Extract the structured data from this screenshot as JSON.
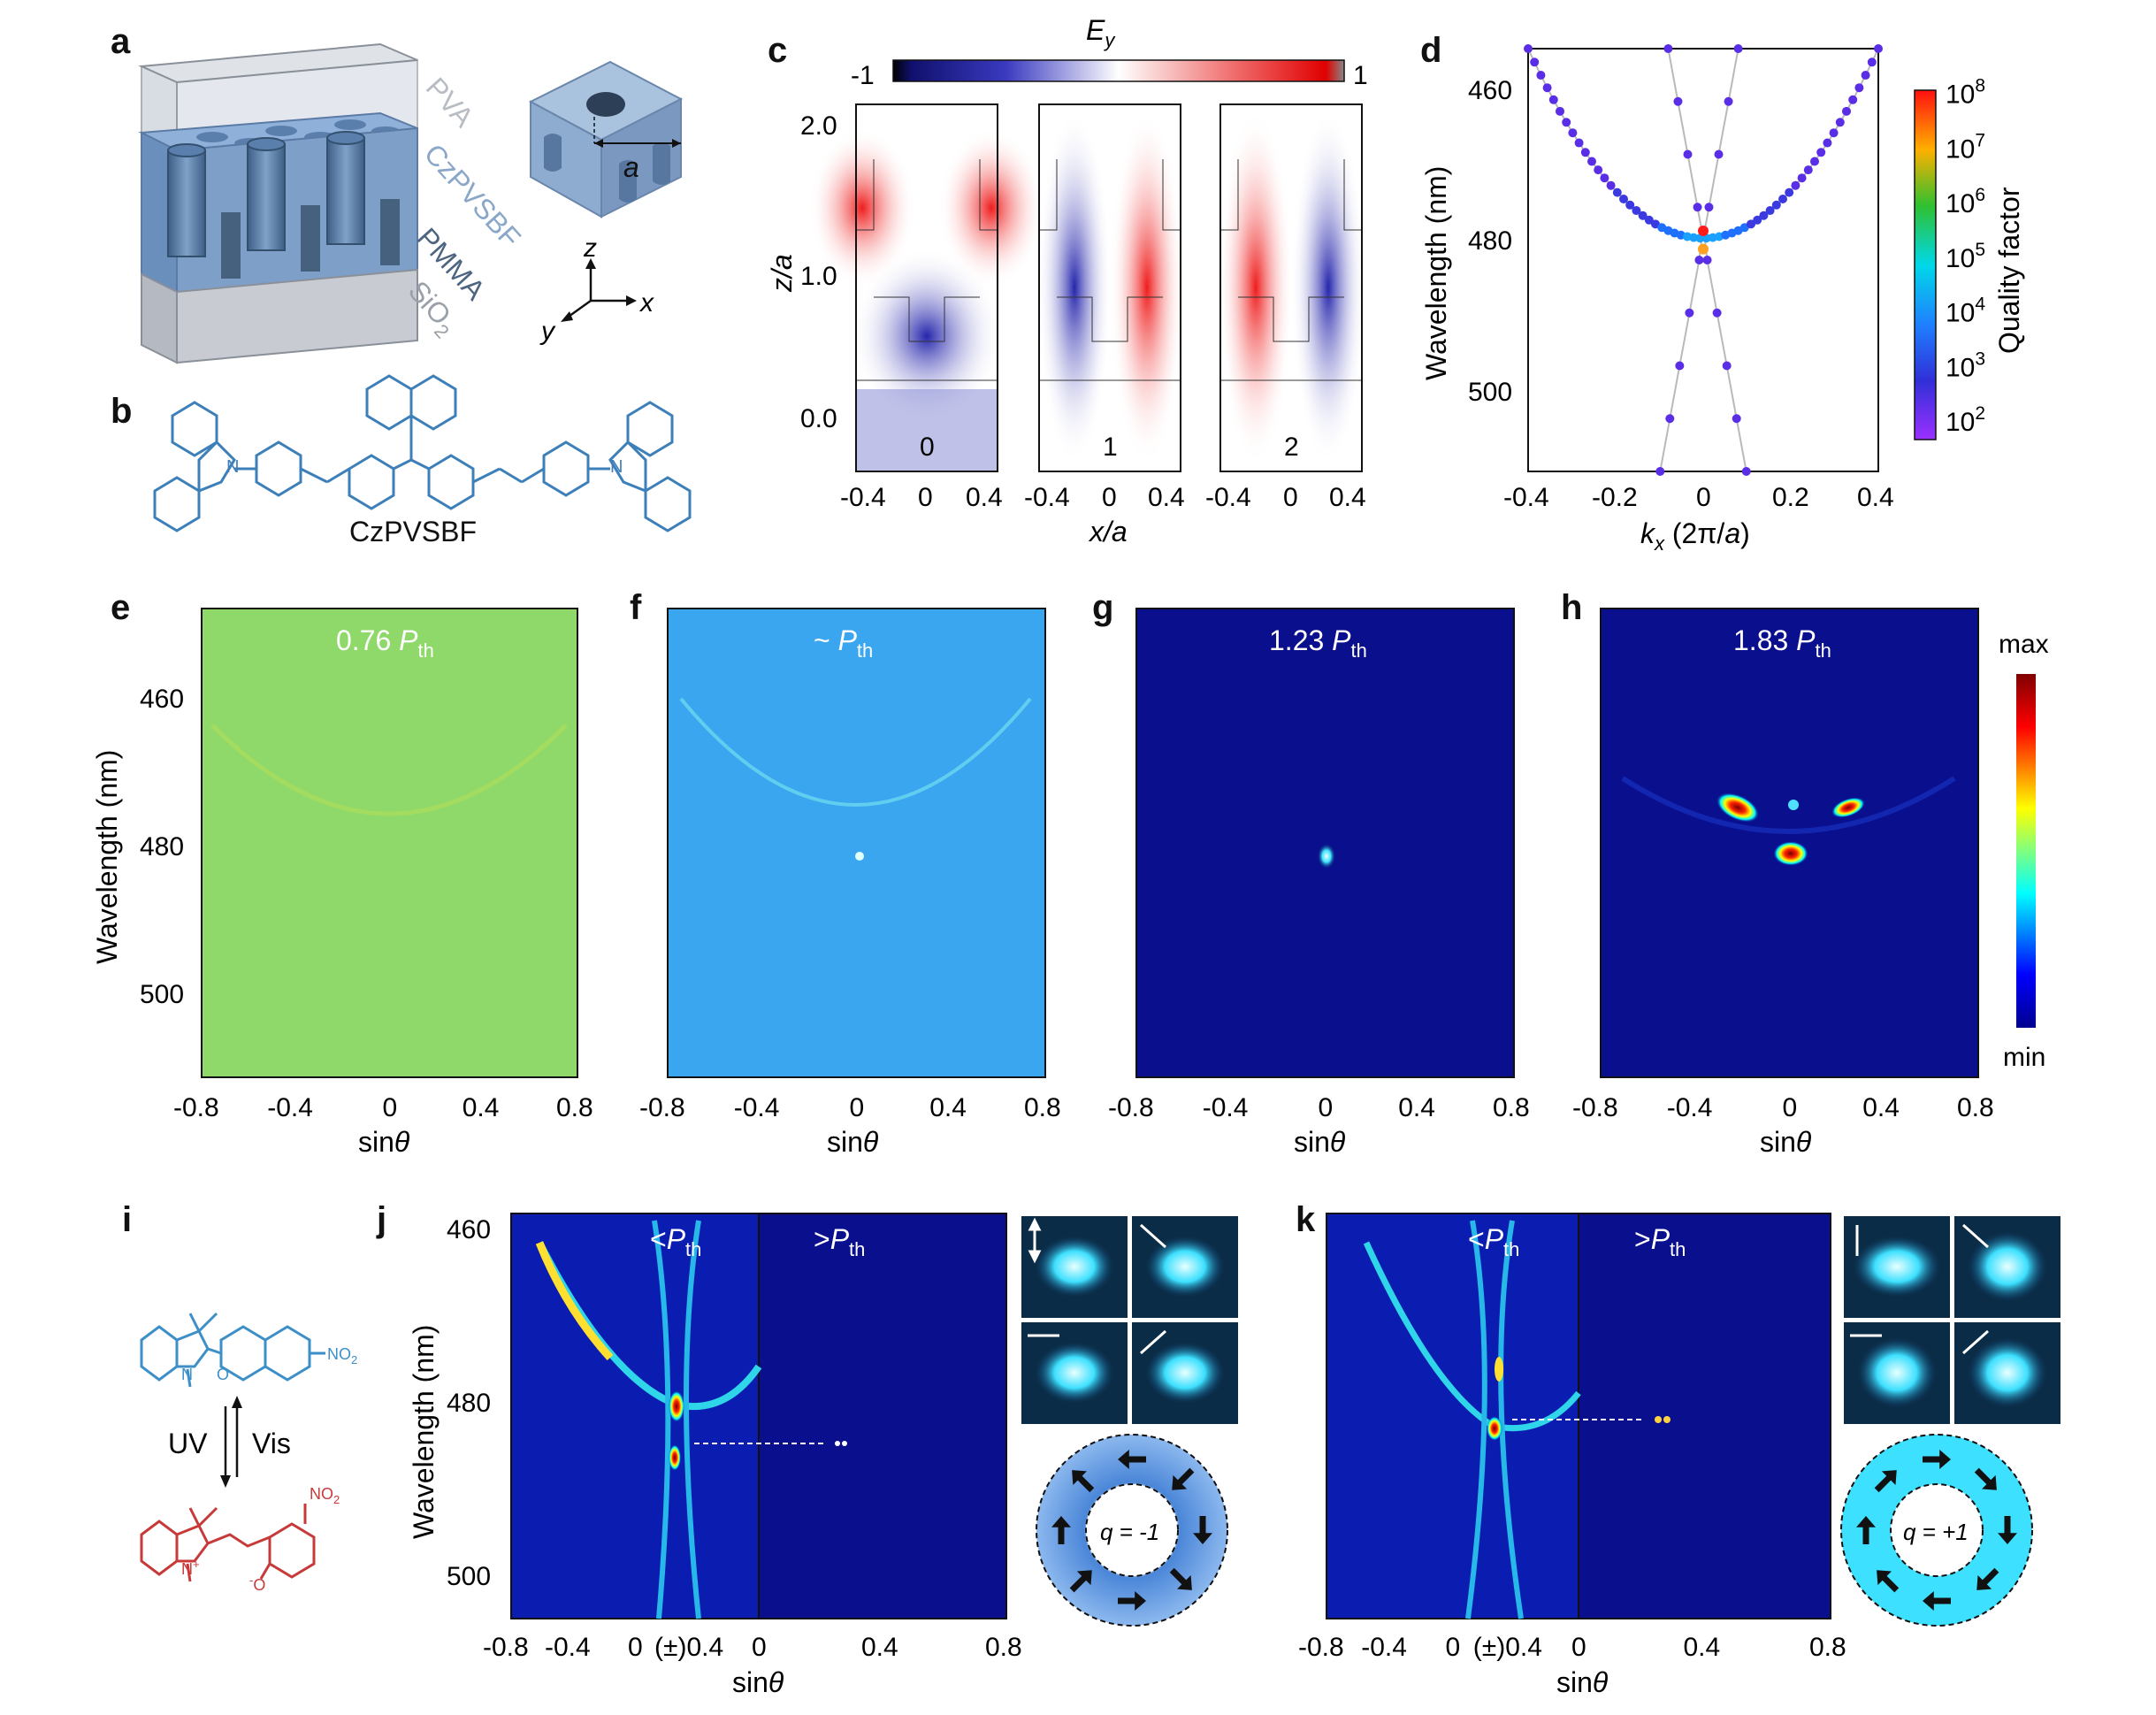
{
  "panels": [
    "a",
    "b",
    "c",
    "d",
    "e",
    "f",
    "g",
    "h",
    "i",
    "j",
    "k"
  ],
  "panel_a": {
    "layers": [
      "PVA",
      "CzPVSBF",
      "PMMA",
      "SiO"
    ],
    "layer_subscript": "2",
    "period_label": "a",
    "axes": {
      "z": "z",
      "x": "x",
      "y": "y"
    }
  },
  "panel_b": {
    "molecule": "CzPVSBF",
    "atom_N": "N"
  },
  "panel_c": {
    "colorbar_title": "E",
    "colorbar_sub": "y",
    "colorbar_min": "-1",
    "colorbar_max": "1",
    "ylabel": "z/a",
    "xlabel": "x/a",
    "yticks": [
      "0.0",
      "1.0",
      "2.0"
    ],
    "xticks": [
      "-0.4",
      "0",
      "0.4"
    ],
    "mode_labels": [
      "0",
      "1",
      "2"
    ],
    "colors": {
      "negative": "#1a1aa8",
      "zero": "#ffffff",
      "positive": "#ee1111"
    }
  },
  "panel_e": {
    "power": "0.76",
    "bg": "#8fd96a"
  },
  "panel_f": {
    "power": "~",
    "bg": "#3ba6f0"
  },
  "panel_g": {
    "power": "1.23",
    "bg": "#0a0f8e"
  },
  "panel_h": {
    "power": "1.83",
    "bg": "#0a0f8e",
    "colorbar_max": "max",
    "colorbar_min": "min"
  },
  "shared_spectra_axes": {
    "ylabel": "Wavelength (nm)",
    "xlabel": "sinθ",
    "yticks": [
      "460",
      "480",
      "500"
    ],
    "xticks": [
      "-0.8",
      "-0.4",
      "0",
      "0.4",
      "0.8"
    ]
  },
  "power_symbol": {
    "P": "P",
    "sub": "th"
  },
  "panel_i": {
    "uv": "UV",
    "vis": "Vis",
    "no2": "NO",
    "no2_sub": "2",
    "atom_N": "N",
    "atom_O": "O",
    "n_plus": "N",
    "o_minus": "O",
    "charge_plus": "+",
    "charge_minus": "-"
  },
  "panel_j": {
    "below": "<",
    "above": ">",
    "xticks": [
      "-0.8",
      "-0.4",
      "0",
      "(±)0.4",
      "0",
      "0.4",
      "0.8"
    ],
    "charge": "q = -1"
  },
  "panel_k": {
    "below": "<",
    "above": ">",
    "xticks": [
      "-0.8",
      "-0.4",
      "0",
      "(±)0.4",
      "0",
      "0.4",
      "0.8"
    ],
    "charge": "q = +1"
  },
  "chart_data": [
    {
      "type": "scatter",
      "title": "",
      "xlabel": "kx (2π/a)",
      "ylabel": "Wavelength (nm)",
      "xlim": [
        -0.4,
        0.4
      ],
      "ylim": [
        512,
        454
      ],
      "xticks": [
        "-0.4",
        "-0.2",
        "0",
        "0.2",
        "0.4"
      ],
      "yticks": [
        "460",
        "480",
        "500"
      ],
      "colorbar": {
        "label": "Quality factor",
        "ticks": [
          "10",
          "10",
          "10",
          "10",
          "10",
          "10",
          "10"
        ],
        "exponents": [
          "2",
          "3",
          "4",
          "5",
          "6",
          "7",
          "8"
        ]
      },
      "series": [
        {
          "name": "",
          "points_rule": "parabola",
          "x_range": [
            -0.4,
            0.4
          ],
          "vertex": [
            0,
            480
          ],
          "edge_y": 454
        },
        {
          "name": "",
          "points_rule": "cross",
          "x_range": [
            -0.08,
            0.08
          ],
          "center": [
            0,
            480
          ]
        }
      ],
      "highlight_points": [
        [
          0,
          479
        ],
        [
          0,
          481.5
        ]
      ]
    },
    {
      "type": "heatmap",
      "panel": "e",
      "xlabel": "sinθ",
      "ylabel": "Wavelength (nm)",
      "xlim": [
        -0.8,
        0.8
      ],
      "ylim": [
        450,
        512
      ]
    }
  ]
}
